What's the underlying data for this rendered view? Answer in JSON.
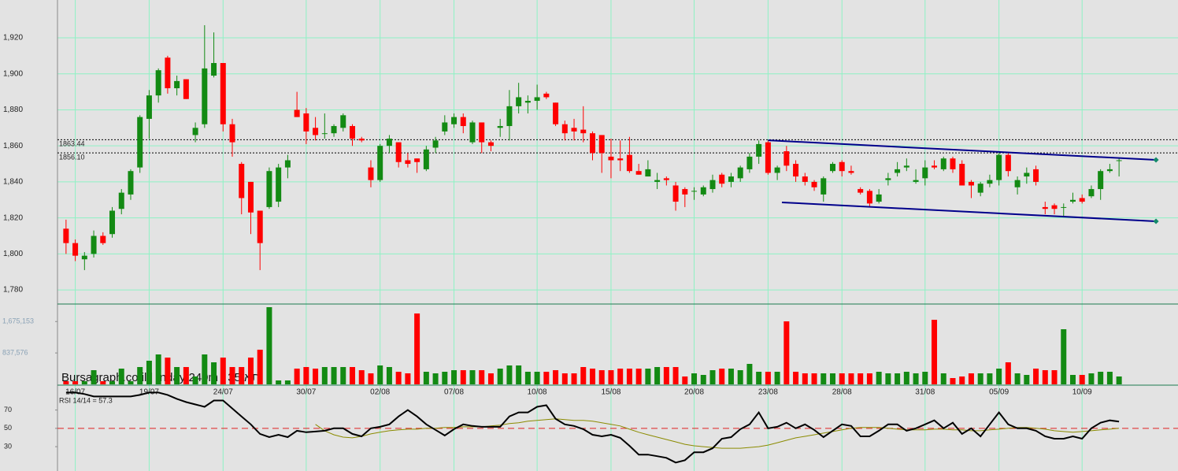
{
  "chart_data": [
    {
      "type": "candlestick",
      "categories": [
        null,
        "16/07",
        null,
        null,
        null,
        null,
        null,
        null,
        null,
        "19/07",
        null,
        null,
        null,
        null,
        null,
        null,
        null,
        "24/07",
        null,
        null,
        null,
        null,
        null,
        null,
        null,
        null,
        "30/07",
        null,
        null,
        null,
        null,
        null,
        null,
        null,
        "02/08",
        null,
        null,
        null,
        null,
        null,
        null,
        null,
        "07/08",
        null,
        null,
        null,
        null,
        null,
        null,
        null,
        null,
        "10/08",
        null,
        null,
        null,
        null,
        null,
        null,
        null,
        "15/08",
        null,
        null,
        null,
        null,
        null,
        null,
        null,
        null,
        "20/08",
        null,
        null,
        null,
        null,
        null,
        null,
        null,
        "23/08",
        null,
        null,
        null,
        null,
        null,
        null,
        null,
        "28/08",
        null,
        null,
        null,
        null,
        null,
        null,
        null,
        null,
        "31/08",
        null,
        null,
        null,
        null,
        null,
        null,
        null,
        "05/09",
        null,
        null,
        null,
        null,
        null,
        null,
        null,
        null,
        "10/09",
        null,
        null,
        null,
        null
      ],
      "open": [
        1814,
        1806,
        1797,
        1800,
        1810,
        1811,
        1825,
        1833,
        1848,
        1875,
        1888,
        1909,
        1892,
        1897,
        1866,
        1872,
        1899,
        1906,
        1872,
        1850,
        1840,
        1824,
        1826,
        1829,
        1848,
        1880,
        1878,
        1870,
        1867,
        1867,
        1870,
        1871,
        1864,
        1848,
        1841,
        1860,
        1862,
        1852,
        1853,
        1847,
        1859,
        1868,
        1872,
        1876,
        1862,
        1873,
        1862,
        1870,
        1871,
        1882,
        1884,
        1885,
        1889,
        1884,
        1872,
        1870,
        1869,
        1867,
        1866,
        1854,
        1853,
        1855,
        1846,
        1843,
        1840,
        1842,
        1838,
        1836,
        1835,
        1833,
        1836,
        1844,
        1840,
        1842,
        1847,
        1854,
        1862,
        1845,
        1857,
        1850,
        1843,
        1840,
        1833,
        1846,
        1851,
        1846,
        1836,
        1835,
        1829,
        1841,
        1845,
        1848,
        1840,
        1842,
        1849,
        1847,
        1853,
        1850,
        1840,
        1834,
        1839,
        1841,
        1855,
        1837,
        1843,
        1847,
        1826,
        1827,
        1826,
        1829,
        1831,
        1832,
        1836,
        1846,
        1852
      ],
      "high": [
        1819,
        1808,
        1801,
        1813,
        1812,
        1826,
        1836,
        1847,
        1877,
        1891,
        1903,
        1910,
        1899,
        1897,
        1873,
        1927,
        1923,
        1906,
        1875,
        1851,
        1840,
        1824,
        1848,
        1850,
        1855,
        1890,
        1881,
        1876,
        1878,
        1872,
        1878,
        1872,
        1865,
        1852,
        1861,
        1866,
        1862,
        1856,
        1853,
        1860,
        1865,
        1877,
        1878,
        1878,
        1874,
        1873,
        1863,
        1875,
        1891,
        1895,
        1888,
        1894,
        1890,
        1884,
        1874,
        1875,
        1882,
        1868,
        1866,
        1864,
        1863,
        1865,
        1850,
        1852,
        1845,
        1843,
        1840,
        1837,
        1837,
        1838,
        1844,
        1845,
        1845,
        1849,
        1856,
        1863,
        1863,
        1849,
        1860,
        1852,
        1845,
        1841,
        1843,
        1851,
        1852,
        1849,
        1837,
        1836,
        1836,
        1845,
        1851,
        1853,
        1847,
        1852,
        1852,
        1854,
        1854,
        1852,
        1841,
        1840,
        1844,
        1856,
        1856,
        1843,
        1848,
        1849,
        1829,
        1828,
        1828,
        1834,
        1833,
        1838,
        1847,
        1850,
        1853
      ],
      "low": [
        1800,
        1796,
        1791,
        1798,
        1805,
        1809,
        1822,
        1830,
        1845,
        1864,
        1884,
        1889,
        1888,
        1886,
        1862,
        1870,
        1898,
        1868,
        1854,
        1822,
        1811,
        1791,
        1825,
        1826,
        1842,
        1876,
        1861,
        1863,
        1864,
        1865,
        1868,
        1860,
        1862,
        1837,
        1840,
        1856,
        1848,
        1848,
        1845,
        1846,
        1856,
        1866,
        1870,
        1867,
        1861,
        1856,
        1857,
        1865,
        1863,
        1878,
        1878,
        1880,
        1886,
        1871,
        1863,
        1863,
        1862,
        1852,
        1845,
        1842,
        1846,
        1845,
        1844,
        1843,
        1836,
        1838,
        1824,
        1826,
        1830,
        1832,
        1834,
        1837,
        1837,
        1840,
        1845,
        1850,
        1844,
        1841,
        1846,
        1840,
        1838,
        1835,
        1829,
        1845,
        1843,
        1844,
        1833,
        1826,
        1828,
        1838,
        1843,
        1846,
        1839,
        1838,
        1847,
        1846,
        1845,
        1838,
        1831,
        1832,
        1837,
        1838,
        1843,
        1833,
        1839,
        1838,
        1822,
        1822,
        1821,
        1828,
        1828,
        1831,
        1830,
        1845,
        1843
      ],
      "close": [
        1806,
        1799,
        1799,
        1810,
        1806,
        1824,
        1834,
        1846,
        1876,
        1888,
        1902,
        1892,
        1896,
        1886,
        1870,
        1903,
        1906,
        1872,
        1862,
        1831,
        1823,
        1806,
        1846,
        1848,
        1852,
        1876,
        1868,
        1866,
        1867,
        1871,
        1877,
        1864,
        1863,
        1841,
        1860,
        1864,
        1851,
        1850,
        1851,
        1858,
        1863,
        1873,
        1876,
        1871,
        1873,
        1862,
        1860,
        1871,
        1882,
        1887,
        1885,
        1887,
        1887,
        1872,
        1867,
        1868,
        1867,
        1856,
        1856,
        1852,
        1852,
        1846,
        1844,
        1847,
        1841,
        1841,
        1829,
        1833,
        1835,
        1837,
        1841,
        1839,
        1843,
        1848,
        1854,
        1861,
        1845,
        1848,
        1849,
        1843,
        1840,
        1837,
        1842,
        1850,
        1846,
        1845,
        1834,
        1828,
        1833,
        1842,
        1847,
        1849,
        1841,
        1848,
        1848,
        1853,
        1847,
        1838,
        1838,
        1839,
        1841,
        1855,
        1846,
        1841,
        1845,
        1840,
        1825,
        1825,
        1826,
        1830,
        1829,
        1836,
        1846,
        1847,
        1852
      ],
      "up_color": "#138a13",
      "down_color": "#ff0000",
      "ylim": [
        1772.6,
        1941
      ],
      "yticks": [
        {
          "value": 1780,
          "label": "1,780"
        },
        {
          "value": 1800,
          "label": "1,800"
        },
        {
          "value": 1820,
          "label": "1,820"
        },
        {
          "value": 1840,
          "label": "1,840"
        },
        {
          "value": 1860,
          "label": "1,860"
        },
        {
          "value": 1880,
          "label": "1,880"
        },
        {
          "value": 1900,
          "label": "1,900"
        },
        {
          "value": 1920,
          "label": "1,920"
        }
      ],
      "grid": true,
      "reference_lines": [
        {
          "value": 1863.44,
          "label": "1863.44"
        },
        {
          "value": 1856.1,
          "label": "1856.10"
        }
      ],
      "trend_lines": [
        {
          "x": [
            76,
            118
          ],
          "y": [
            1863.1,
            1852.2
          ],
          "color": "#00008b"
        },
        {
          "x": [
            77.5,
            118
          ],
          "y": [
            1828.6,
            1818.1
          ],
          "color": "#00008b"
        }
      ],
      "watermark": "Bursagraph.co.il | Inday 240m | 35 תא"
    },
    {
      "type": "volume",
      "values": [
        84000,
        84000,
        84000,
        378000,
        84000,
        84000,
        420000,
        84000,
        462000,
        630000,
        798000,
        714000,
        462000,
        462000,
        210000,
        798000,
        588000,
        714000,
        462000,
        462000,
        714000,
        924000,
        2058000,
        105000,
        105000,
        420000,
        462000,
        420000,
        462000,
        462000,
        462000,
        462000,
        378000,
        294000,
        504000,
        462000,
        336000,
        294000,
        1890000,
        336000,
        294000,
        336000,
        378000,
        378000,
        378000,
        378000,
        294000,
        420000,
        504000,
        504000,
        336000,
        336000,
        336000,
        378000,
        294000,
        294000,
        462000,
        420000,
        378000,
        378000,
        420000,
        420000,
        420000,
        420000,
        462000,
        462000,
        462000,
        210000,
        294000,
        252000,
        378000,
        420000,
        420000,
        378000,
        546000,
        336000,
        336000,
        336000,
        1680000,
        336000,
        294000,
        294000,
        294000,
        294000,
        294000,
        294000,
        294000,
        294000,
        336000,
        294000,
        294000,
        336000,
        294000,
        336000,
        1722000,
        294000,
        168000,
        210000,
        294000,
        294000,
        294000,
        420000,
        588000,
        294000,
        252000,
        420000,
        378000,
        378000,
        1470000,
        252000,
        252000,
        294000,
        336000,
        336000,
        210000
      ],
      "ylim": [
        0,
        2100000
      ],
      "yticks": [
        {
          "value": 837576,
          "label": "837,576"
        },
        {
          "value": 1675153,
          "label": "1,675,153"
        }
      ]
    },
    {
      "type": "rsi",
      "title": "RSI 14/14 = 57.3",
      "series": [
        {
          "color": "#000000",
          "values": [
            89.1,
            89.1,
            87.4,
            84.8,
            84.8,
            84.8,
            84.8,
            84.8,
            86.5,
            89.1,
            89.1,
            86.5,
            82.2,
            78.7,
            76.1,
            73.5,
            80.4,
            80.4,
            71.7,
            63,
            54.3,
            43.9,
            40.4,
            43,
            40.4,
            47.4,
            45.7,
            46.5,
            47.4,
            50,
            50,
            43.9,
            41.3,
            50,
            51.7,
            54.3,
            63,
            70,
            63,
            54.3,
            48.3,
            42.2,
            49.1,
            54.3,
            52.6,
            51.7,
            51.7,
            51.7,
            63,
            67.4,
            67.4,
            73.5,
            75.2,
            60.4,
            54.3,
            52.6,
            49.1,
            43,
            41.3,
            43,
            39.6,
            30.9,
            21.3,
            21.3,
            19.6,
            17.8,
            12.6,
            15.2,
            23.9,
            23.9,
            28.3,
            38.7,
            40.4,
            49.1,
            54.3,
            67.4,
            50,
            51.7,
            56.1,
            50,
            54.3,
            48.3,
            40.4,
            47.4,
            54.3,
            52.6,
            41.3,
            41.3,
            47.4,
            54.3,
            54.3,
            47.4,
            50,
            54.3,
            58.7,
            50,
            56.1,
            43.9,
            50,
            41.3,
            54.3,
            67.4,
            54.3,
            50,
            50,
            47.4,
            41.3,
            38.7,
            38.7,
            41.3,
            38.7,
            50,
            56.1,
            58.7,
            57.3
          ]
        },
        {
          "color": "#8b8b00",
          "values": [
            null,
            null,
            null,
            null,
            null,
            null,
            null,
            null,
            null,
            null,
            null,
            null,
            null,
            null,
            null,
            null,
            null,
            null,
            null,
            null,
            null,
            null,
            null,
            null,
            null,
            null,
            null,
            54.3,
            47.4,
            43,
            40.4,
            39.6,
            41.3,
            43.9,
            45.7,
            47.4,
            48.3,
            49.1,
            49.1,
            50,
            50,
            50.9,
            50.9,
            51.7,
            51.7,
            51.7,
            52.6,
            53.5,
            55.2,
            56.1,
            57.8,
            58.7,
            59.6,
            60.4,
            59.6,
            58.7,
            58.7,
            57.8,
            56.1,
            54.3,
            52.6,
            49.1,
            45.7,
            43,
            40.4,
            37.8,
            35.2,
            32.6,
            30.9,
            30,
            29.1,
            28.3,
            28.3,
            28.3,
            29.1,
            30,
            31.7,
            34.3,
            37,
            39.6,
            41.3,
            43,
            44.8,
            46.5,
            48.3,
            50,
            50.9,
            50.9,
            50.9,
            50,
            49.1,
            48.3,
            48.3,
            48.3,
            49.1,
            49.1,
            48.3,
            48.3,
            47.4,
            47.4,
            48.3,
            49.1,
            50,
            50.9,
            50.9,
            50,
            49.1,
            47.4,
            46.5,
            45.7,
            46.5,
            47.4,
            48.3,
            49.1,
            50
          ]
        }
      ],
      "ylim": [
        6,
        92
      ],
      "yticks": [
        30,
        50,
        70
      ],
      "reference_line": 50,
      "reference_color": "#e02020"
    }
  ]
}
